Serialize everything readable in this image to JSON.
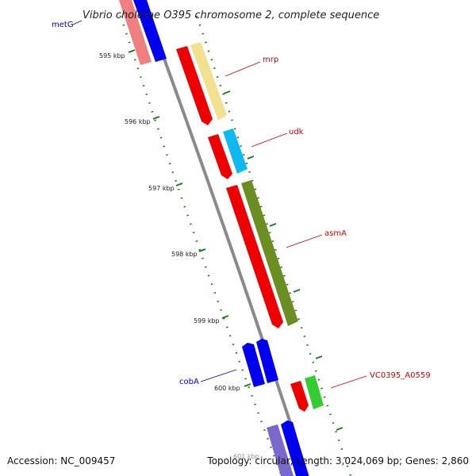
{
  "title": "Vibrio cholerae O395 chromosome 2, complete sequence",
  "footer": {
    "accession": "Accession: NC_009457",
    "summary": "Topology: circular; Length: 3,024,069 bp; Genes: 2,860"
  },
  "ticks": [
    "595 kbp",
    "596 kbp",
    "597 kbp",
    "598 kbp",
    "599 kbp",
    "600 kbp",
    "601 kbp"
  ],
  "colors": {
    "backbone": "#8a8a8a",
    "tick": "#1f7a1f",
    "forward_label": "#cc0000",
    "reverse_label": "#0000cc"
  },
  "genes": [
    {
      "label": "metG",
      "strand": "reverse",
      "label_color": "#0000cc"
    },
    {
      "label": "mrp",
      "strand": "forward",
      "label_color": "#cc0000"
    },
    {
      "label": "udk",
      "strand": "forward",
      "label_color": "#cc0000"
    },
    {
      "label": "asmA",
      "strand": "forward",
      "label_color": "#cc0000"
    },
    {
      "label": "cobA",
      "strand": "reverse",
      "label_color": "#0000cc"
    },
    {
      "label": "VC0395_A0559",
      "strand": "forward",
      "label_color": "#cc0000"
    }
  ]
}
